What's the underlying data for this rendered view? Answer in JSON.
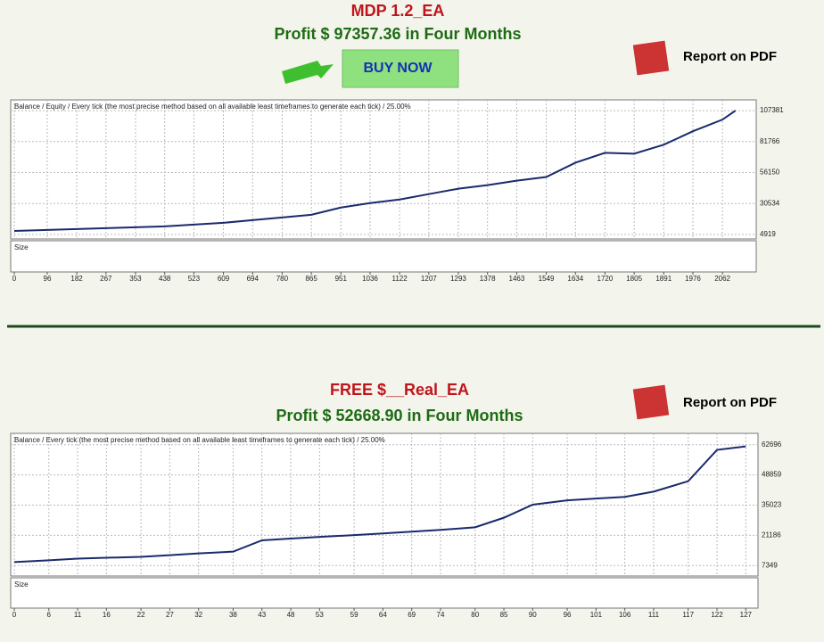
{
  "page": {
    "top_title": "MDP 1.2_EA",
    "top_profit": "Profit $ 97357.36 in Four Months",
    "buy_button": "BUY NOW",
    "pdf_link_1": "Report on PDF",
    "bottom_title": "FREE $__Real_EA",
    "bottom_profit": "Profit $ 52668.90 in Four Months",
    "pdf_link_2": "Report on PDF",
    "sub_panel_label": "Size"
  },
  "chart_data": [
    {
      "type": "line",
      "subtitle": "Balance / Equity / Every tick (the most precise method based on all available least timeframes to generate each tick) / 25.00%",
      "x": [
        0,
        96,
        182,
        267,
        353,
        438,
        523,
        609,
        694,
        780,
        865,
        951,
        1036,
        1122,
        1207,
        1293,
        1378,
        1463,
        1549,
        1634,
        1720,
        1805,
        1891,
        1976,
        2062,
        2100
      ],
      "series": [
        {
          "name": "Balance",
          "color": "#1a2a6c",
          "values": [
            7889,
            8631,
            9374,
            10116,
            10859,
            11601,
            13087,
            14572,
            16799,
            19027,
            21254,
            27194,
            30907,
            33877,
            38332,
            42787,
            45757,
            49469,
            52439,
            64319,
            72487,
            71744,
            79169,
            90306,
            99959,
            107384
          ]
        }
      ],
      "xlim": [
        0,
        2150
      ],
      "xticks": [
        0,
        96,
        182,
        267,
        353,
        438,
        523,
        609,
        694,
        780,
        865,
        951,
        1036,
        1122,
        1207,
        1293,
        1378,
        1463,
        1549,
        1634,
        1720,
        1805,
        1891,
        1976,
        2062
      ],
      "ylim": [
        1207,
        116290
      ],
      "yticks": [
        4919,
        30534,
        56150,
        81766,
        107381
      ],
      "grid": true
    },
    {
      "type": "line",
      "subtitle": "Balance / Every tick (the most precise method based on all available least timeframes to generate each tick) / 25.00%",
      "x": [
        0,
        6,
        11,
        16,
        22,
        27,
        32,
        38,
        43,
        48,
        53,
        59,
        64,
        69,
        74,
        80,
        85,
        90,
        96,
        101,
        106,
        111,
        117,
        122,
        127
      ],
      "series": [
        {
          "name": "Balance",
          "color": "#1a2a6c",
          "values": [
            8942,
            9738,
            10535,
            10933,
            11331,
            12127,
            12924,
            13720,
            18898,
            19694,
            20490,
            21286,
            22083,
            22879,
            23676,
            24870,
            29250,
            35224,
            37215,
            38011,
            38808,
            41197,
            45975,
            60311,
            61903
          ]
        }
      ],
      "xlim": [
        0,
        128.5
      ],
      "xticks": [
        0,
        6,
        11,
        16,
        22,
        27,
        32,
        38,
        43,
        48,
        53,
        59,
        64,
        69,
        74,
        80,
        85,
        90,
        96,
        101,
        106,
        111,
        117,
        122,
        127
      ],
      "ylim": [
        2567,
        67880
      ],
      "yticks": [
        7349,
        21186,
        35023,
        48859,
        62696
      ],
      "grid": true
    }
  ]
}
